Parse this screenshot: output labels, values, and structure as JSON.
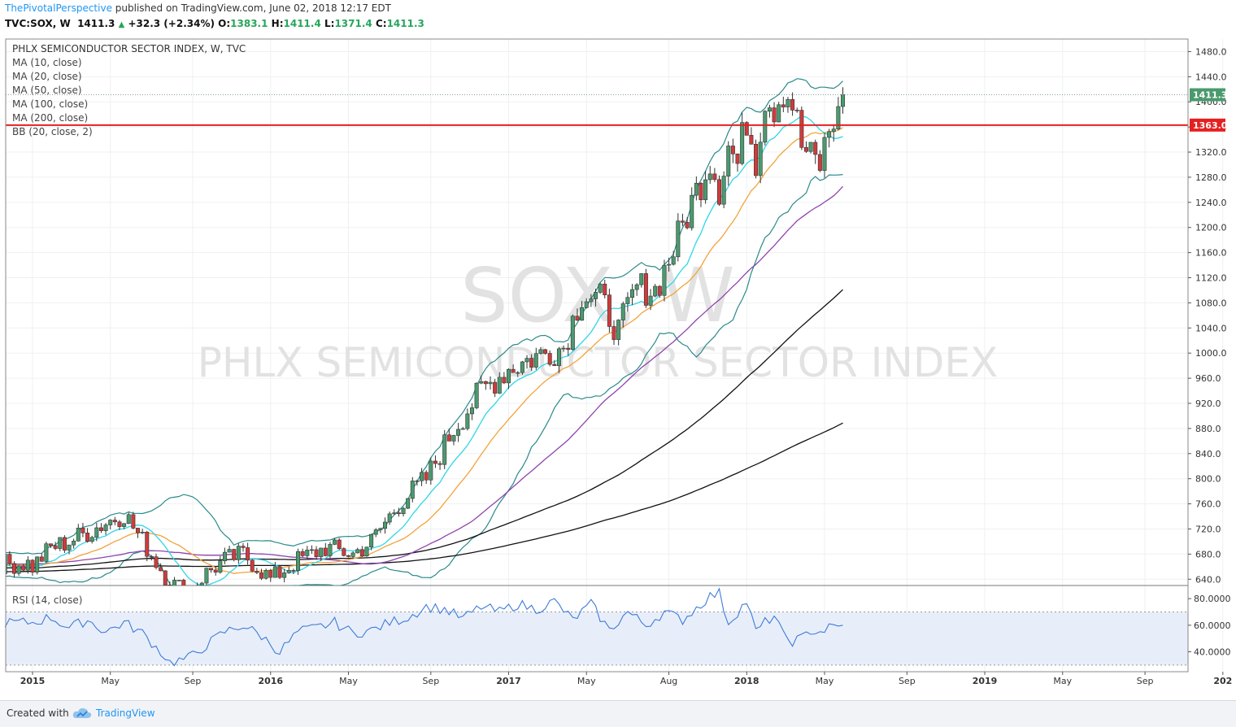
{
  "header": {
    "author": "ThePivotalPerspective",
    "published": " published on TradingView.com, June 02, 2018 12:17 EDT",
    "symbol": "TVC:SOX, W",
    "last": "1411.3",
    "change": "+32.3 (+2.34%)",
    "o_label": "O:",
    "o_value": "1383.1",
    "h_label": "H:",
    "h_value": "1411.4",
    "l_label": "L:",
    "l_value": "1371.4",
    "c_label": "C:",
    "c_value": "1411.3"
  },
  "footer": {
    "created_with": "Created with",
    "brand": "TradingView"
  },
  "colors": {
    "up": "#4a9a6e",
    "down": "#cf3b3b",
    "ma10": "#2fd6e6",
    "ma20": "#f2a33a",
    "ma50": "#8e44ad",
    "ma100": "#111111",
    "ma200": "#111111",
    "bb": "#2a8a8a",
    "level_line": "#e52020",
    "rsi_line": "#3d7bd9",
    "rsi_band": "#e8eef9"
  },
  "chart_data": [
    {
      "type": "candlestick",
      "title": "PHLX SEMICONDUCTOR SECTOR INDEX, W, TVC",
      "watermark_symbol": "SOX, W",
      "watermark_name": "PHLX SEMICONDUCTOR SECTOR INDEX",
      "legend": [
        "MA (10, close)",
        "MA (20, close)",
        "MA (50, close)",
        "MA (100, close)",
        "MA (200, close)",
        "BB (20, close, 2)"
      ],
      "y_ticks": [
        640,
        680,
        720,
        760,
        800,
        840,
        880,
        920,
        960,
        1000,
        1040,
        1080,
        1120,
        1160,
        1200,
        1240,
        1280,
        1320,
        1360,
        1400,
        1440,
        1480
      ],
      "y_tick_labels": [
        "640.0",
        "680.0",
        "720.0",
        "760.0",
        "800.0",
        "840.0",
        "880.0",
        "920.0",
        "960.0",
        "1000.0",
        "1040.0",
        "1080.0",
        "1120.0",
        "1160.0",
        "1200.0",
        "1240.0",
        "1280.0",
        "1320.0",
        "1360.0",
        "1400.0",
        "1440.0",
        "1480.0"
      ],
      "ylim": [
        630,
        1500
      ],
      "x_labels": [
        "2015",
        "May",
        "Sep",
        "2016",
        "May",
        "Sep",
        "2017",
        "May",
        "Aug",
        "2018",
        "May",
        "Sep",
        "2019",
        "May",
        "Sep",
        "202"
      ],
      "x_label_weeks": [
        0,
        17,
        35,
        52,
        69,
        87,
        104,
        121,
        139,
        156,
        173,
        191,
        208,
        225,
        243,
        260
      ],
      "last_value": 1411.3,
      "last_value_label": "1411.3",
      "horizontal_level": 1363.0,
      "horizontal_level_label": "1363.0",
      "close_key_weeks": [
        0,
        4,
        8,
        12,
        16,
        20,
        25,
        30,
        34,
        38,
        42,
        46,
        52,
        58,
        64,
        70,
        74,
        80,
        86,
        92,
        98,
        104,
        110,
        116,
        120,
        124,
        128,
        132,
        136,
        140,
        144,
        148,
        150,
        152,
        154,
        156,
        158,
        160,
        162,
        164,
        166,
        168,
        170,
        172,
        174,
        177
      ],
      "close_key_values": [
        660,
        690,
        700,
        715,
        730,
        745,
        690,
        635,
        620,
        650,
        670,
        680,
        640,
        670,
        690,
        680,
        700,
        760,
        800,
        880,
        940,
        975,
        995,
        1010,
        1095,
        1085,
        1035,
        1105,
        1100,
        1165,
        1240,
        1310,
        1265,
        1330,
        1300,
        1375,
        1310,
        1410,
        1395,
        1420,
        1400,
        1330,
        1310,
        1300,
        1355,
        1411.3
      ]
    },
    {
      "type": "line",
      "title": "RSI (14, close)",
      "y_ticks": [
        40,
        60,
        80
      ],
      "y_tick_labels": [
        "40.0000",
        "60.0000",
        "80.0000"
      ],
      "band": [
        30,
        70
      ],
      "ylim": [
        25,
        85
      ],
      "key_weeks": [
        0,
        4,
        8,
        12,
        16,
        20,
        24,
        28,
        30,
        34,
        38,
        42,
        46,
        50,
        54,
        58,
        62,
        66,
        70,
        74,
        78,
        82,
        86,
        90,
        94,
        98,
        102,
        106,
        110,
        114,
        118,
        122,
        126,
        130,
        134,
        138,
        142,
        146,
        148,
        150,
        152,
        154,
        156,
        158,
        160,
        162,
        164,
        166,
        168,
        170,
        172,
        174,
        177
      ],
      "key_values": [
        62,
        66,
        58,
        64,
        55,
        62,
        54,
        40,
        32,
        35,
        45,
        55,
        60,
        52,
        40,
        55,
        58,
        62,
        54,
        56,
        62,
        66,
        74,
        72,
        65,
        74,
        70,
        76,
        72,
        78,
        64,
        76,
        56,
        70,
        60,
        70,
        64,
        76,
        82,
        84,
        62,
        70,
        78,
        55,
        62,
        67,
        52,
        48,
        50,
        56,
        55,
        58,
        60
      ]
    }
  ]
}
